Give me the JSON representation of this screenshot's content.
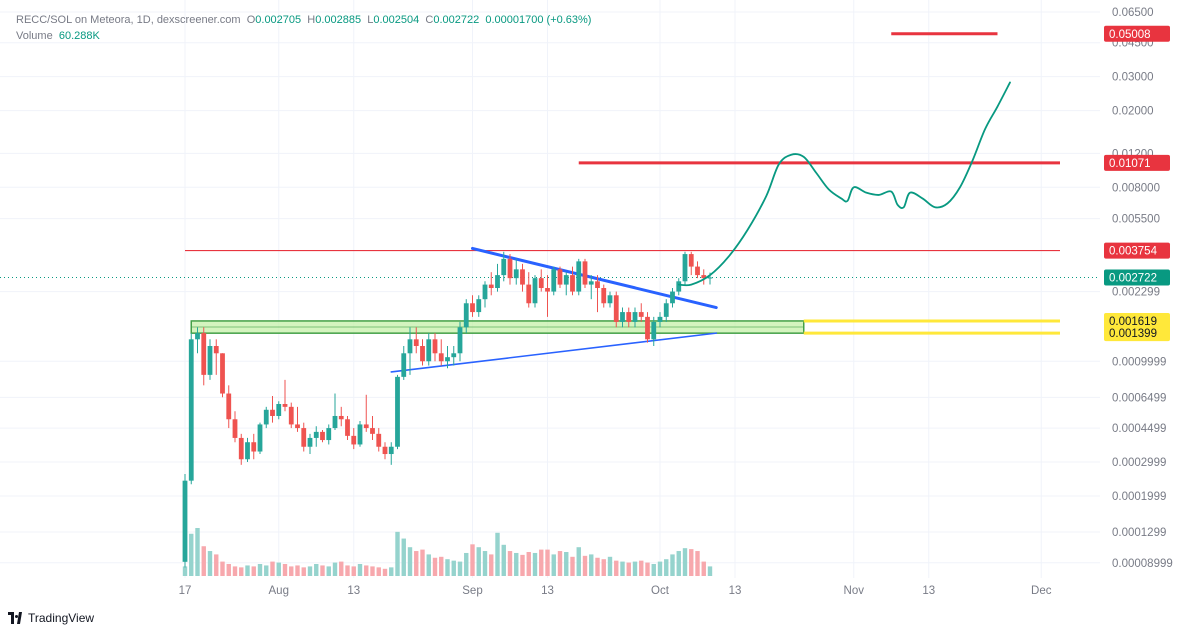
{
  "header": {
    "symbol_line": "RECC/SOL on Meteora, 1D, dexscreener.com",
    "o_label": "O",
    "o_value": "0.002705",
    "h_label": "H",
    "h_value": "0.002885",
    "l_label": "L",
    "l_value": "0.002504",
    "c_label": "C",
    "c_value": "0.002722",
    "change": "0.00001700 (+0.63%)",
    "volume_label": "Volume",
    "volume_value": "60.288K"
  },
  "branding": {
    "logo_text": "TradingView"
  },
  "colors": {
    "up": "#26a69a",
    "down": "#ef5350",
    "vol_up": "#95d3cd",
    "vol_down": "#f7a8ad",
    "resistance": "#e8343f",
    "support": "#ffe83a",
    "zone_fill": "#c6f0a9",
    "zone_border": "#43a047",
    "trendline": "#2962ff",
    "projection": "#089981",
    "last_price": "#089981"
  },
  "chart_data": {
    "type": "candlestick",
    "price_scale": "log",
    "x_tick_labels": [
      "17",
      "Aug",
      "13",
      "Sep",
      "13",
      "Oct",
      "13",
      "Nov",
      "13",
      "Dec"
    ],
    "y_tick_labels": [
      "0.06500",
      "0.04500",
      "0.03000",
      "0.02000",
      "0.01200",
      "0.008000",
      "0.005500",
      "0.002299",
      "0.0009999",
      "0.0006499",
      "0.0004499",
      "0.0002999",
      "0.0001999",
      "0.0001299",
      "0.00008999"
    ],
    "y_ticks": [
      0.065,
      0.045,
      0.03,
      0.02,
      0.012,
      0.008,
      0.0055,
      0.002299,
      0.0009999,
      0.0006499,
      0.0004499,
      0.0002999,
      0.0001999,
      0.0001299,
      8.999e-05
    ],
    "ylim": [
      7.5e-05,
      0.075
    ],
    "start_date": "2024-07-17",
    "x_ticks": [
      {
        "label": "17",
        "date": "2024-07-17"
      },
      {
        "label": "Aug",
        "date": "2024-08-01"
      },
      {
        "label": "13",
        "date": "2024-08-13"
      },
      {
        "label": "Sep",
        "date": "2024-09-01"
      },
      {
        "label": "13",
        "date": "2024-09-13"
      },
      {
        "label": "Oct",
        "date": "2024-10-01"
      },
      {
        "label": "13",
        "date": "2024-10-13"
      },
      {
        "label": "Nov",
        "date": "2024-11-01"
      },
      {
        "label": "13",
        "date": "2024-11-13"
      },
      {
        "label": "Dec",
        "date": "2024-12-01"
      }
    ],
    "x_max_date": "2024-12-04",
    "candles": [
      [
        9.1e-05,
        0.00026,
        8.5e-05,
        0.00024
      ],
      [
        0.00024,
        0.0014,
        0.00023,
        0.0013
      ],
      [
        0.0013,
        0.0015,
        0.0011,
        0.0014
      ],
      [
        0.0014,
        0.0015,
        0.00075,
        0.00085
      ],
      [
        0.00085,
        0.0013,
        0.0008,
        0.0012
      ],
      [
        0.0012,
        0.0013,
        0.00085,
        0.0011
      ],
      [
        0.0011,
        0.0011,
        0.00065,
        0.00068
      ],
      [
        0.00068,
        0.00075,
        0.00045,
        0.0005
      ],
      [
        0.0005,
        0.00055,
        0.00038,
        0.0004
      ],
      [
        0.0004,
        0.00042,
        0.00029,
        0.00031
      ],
      [
        0.00031,
        0.0004,
        0.0003,
        0.00038
      ],
      [
        0.00038,
        0.00042,
        0.00031,
        0.00034
      ],
      [
        0.00034,
        0.00048,
        0.00033,
        0.00047
      ],
      [
        0.00047,
        0.00058,
        0.00045,
        0.00056
      ],
      [
        0.00056,
        0.00066,
        0.00048,
        0.00052
      ],
      [
        0.00052,
        0.00062,
        0.0005,
        0.0006
      ],
      [
        0.0006,
        0.0008,
        0.00055,
        0.00058
      ],
      [
        0.00058,
        0.00061,
        0.00045,
        0.00047
      ],
      [
        0.00047,
        0.00058,
        0.00043,
        0.00045
      ],
      [
        0.00045,
        0.00048,
        0.00034,
        0.00036
      ],
      [
        0.00036,
        0.00042,
        0.00033,
        0.0004
      ],
      [
        0.0004,
        0.00046,
        0.00036,
        0.00043
      ],
      [
        0.00043,
        0.00044,
        0.00038,
        0.00039
      ],
      [
        0.00039,
        0.00047,
        0.00037,
        0.00045
      ],
      [
        0.00045,
        0.00068,
        0.00044,
        0.00052
      ],
      [
        0.00052,
        0.00058,
        0.00046,
        0.0005
      ],
      [
        0.0005,
        0.00052,
        0.00039,
        0.00041
      ],
      [
        0.00041,
        0.00045,
        0.00035,
        0.00037
      ],
      [
        0.00037,
        0.00049,
        0.00036,
        0.00047
      ],
      [
        0.00047,
        0.00067,
        0.00043,
        0.00045
      ],
      [
        0.00045,
        0.00052,
        0.00039,
        0.00042
      ],
      [
        0.00042,
        0.00045,
        0.00034,
        0.00036
      ],
      [
        0.00036,
        0.00038,
        0.00031,
        0.00033
      ],
      [
        0.00033,
        0.00038,
        0.00029,
        0.00036
      ],
      [
        0.00036,
        0.00085,
        0.00035,
        0.00083
      ],
      [
        0.00083,
        0.0012,
        0.0008,
        0.0011
      ],
      [
        0.0011,
        0.0015,
        0.00085,
        0.0013
      ],
      [
        0.0013,
        0.0015,
        0.0011,
        0.0012
      ],
      [
        0.0012,
        0.0013,
        0.00095,
        0.001
      ],
      [
        0.001,
        0.0014,
        0.00095,
        0.0013
      ],
      [
        0.0013,
        0.0014,
        0.001,
        0.0011
      ],
      [
        0.0011,
        0.0013,
        0.00095,
        0.001
      ],
      [
        0.001,
        0.0012,
        0.00092,
        0.00105
      ],
      [
        0.00105,
        0.0012,
        0.00095,
        0.0011
      ],
      [
        0.0011,
        0.0016,
        0.001,
        0.0015
      ],
      [
        0.0015,
        0.0021,
        0.0014,
        0.002
      ],
      [
        0.002,
        0.0022,
        0.0017,
        0.0018
      ],
      [
        0.0018,
        0.0022,
        0.0017,
        0.0021
      ],
      [
        0.0021,
        0.0026,
        0.0019,
        0.0025
      ],
      [
        0.0025,
        0.0029,
        0.0022,
        0.0024
      ],
      [
        0.0024,
        0.0032,
        0.0023,
        0.0028
      ],
      [
        0.0028,
        0.0037,
        0.0026,
        0.0034
      ],
      [
        0.0034,
        0.0036,
        0.0025,
        0.0027
      ],
      [
        0.0027,
        0.0034,
        0.0025,
        0.003
      ],
      [
        0.003,
        0.0032,
        0.0023,
        0.0025
      ],
      [
        0.0025,
        0.0029,
        0.0019,
        0.002
      ],
      [
        0.002,
        0.0028,
        0.0019,
        0.0027
      ],
      [
        0.0027,
        0.003,
        0.0023,
        0.0024
      ],
      [
        0.0024,
        0.0028,
        0.0017,
        0.0023
      ],
      [
        0.0023,
        0.0031,
        0.0022,
        0.003
      ],
      [
        0.003,
        0.0031,
        0.0024,
        0.0025
      ],
      [
        0.0025,
        0.0029,
        0.0022,
        0.0028
      ],
      [
        0.0028,
        0.0031,
        0.0022,
        0.0023
      ],
      [
        0.0023,
        0.0034,
        0.0022,
        0.0033
      ],
      [
        0.0033,
        0.0034,
        0.0024,
        0.0025
      ],
      [
        0.0025,
        0.0028,
        0.0021,
        0.0026
      ],
      [
        0.0026,
        0.0028,
        0.0018,
        0.0024
      ],
      [
        0.0024,
        0.0025,
        0.0019,
        0.002
      ],
      [
        0.002,
        0.0023,
        0.0019,
        0.0022
      ],
      [
        0.0022,
        0.0023,
        0.0015,
        0.0016
      ],
      [
        0.0016,
        0.0019,
        0.0015,
        0.0018
      ],
      [
        0.0018,
        0.0019,
        0.0015,
        0.0016
      ],
      [
        0.0016,
        0.0019,
        0.0015,
        0.0018
      ],
      [
        0.0018,
        0.002,
        0.0016,
        0.0017
      ],
      [
        0.0017,
        0.0018,
        0.00125,
        0.0013
      ],
      [
        0.0013,
        0.0017,
        0.0012,
        0.0016
      ],
      [
        0.0016,
        0.0018,
        0.0015,
        0.0017
      ],
      [
        0.0017,
        0.0021,
        0.0016,
        0.002
      ],
      [
        0.002,
        0.0024,
        0.0019,
        0.0023
      ],
      [
        0.0023,
        0.0027,
        0.0022,
        0.0026
      ],
      [
        0.0026,
        0.0037,
        0.0025,
        0.0036
      ],
      [
        0.0036,
        0.0037,
        0.0028,
        0.0031
      ],
      [
        0.0031,
        0.0033,
        0.0027,
        0.0028
      ],
      [
        0.0028,
        0.003,
        0.0025,
        0.0027
      ],
      [
        0.002705,
        0.002885,
        0.002504,
        0.002722
      ]
    ],
    "volumes": [
      0.2,
      0.88,
      1,
      0.62,
      0.52,
      0.45,
      0.3,
      0.25,
      0.2,
      0.18,
      0.22,
      0.2,
      0.25,
      0.22,
      0.3,
      0.28,
      0.25,
      0.2,
      0.22,
      0.18,
      0.2,
      0.25,
      0.22,
      0.2,
      0.28,
      0.3,
      0.22,
      0.2,
      0.25,
      0.22,
      0.2,
      0.18,
      0.15,
      0.18,
      0.92,
      0.78,
      0.6,
      0.52,
      0.55,
      0.45,
      0.38,
      0.4,
      0.35,
      0.32,
      0.3,
      0.48,
      0.66,
      0.6,
      0.52,
      0.45,
      0.9,
      0.65,
      0.52,
      0.48,
      0.44,
      0.5,
      0.48,
      0.55,
      0.55,
      0.45,
      0.52,
      0.5,
      0.4,
      0.6,
      0.42,
      0.45,
      0.38,
      0.35,
      0.4,
      0.32,
      0.3,
      0.28,
      0.3,
      0.32,
      0.28,
      0.25,
      0.3,
      0.35,
      0.45,
      0.52,
      0.58,
      0.56,
      0.52,
      0.3,
      0.2
    ],
    "price_labels": [
      {
        "value": 0.05008,
        "text": "0.05008",
        "kind": "resistance"
      },
      {
        "value": 0.01071,
        "text": "0.01071",
        "kind": "resistance"
      },
      {
        "value": 0.003754,
        "text": "0.003754",
        "kind": "resistance"
      },
      {
        "value": 0.002722,
        "text": "0.002722",
        "kind": "last"
      },
      {
        "value": 0.001619,
        "text": "0.001619",
        "kind": "support"
      },
      {
        "value": 0.001399,
        "text": "0.001399",
        "kind": "support"
      }
    ],
    "resistance_lines": [
      {
        "value": 0.05008,
        "from": "2024-11-07",
        "to": "2024-11-24"
      },
      {
        "value": 0.01071,
        "from": "2024-09-18",
        "to": "2024-12-04"
      },
      {
        "value": 0.003754,
        "from": "2024-07-17",
        "to": "2024-12-04"
      }
    ],
    "support_lines": [
      {
        "value": 0.001619,
        "from": "2024-10-24",
        "to": "2024-12-04"
      },
      {
        "value": 0.001399,
        "from": "2024-10-24",
        "to": "2024-12-04"
      }
    ],
    "support_zone": {
      "from": "2024-07-18",
      "to": "2024-10-24",
      "low": 0.001399,
      "high": 0.001619
    },
    "trendlines": [
      {
        "points": [
          {
            "date": "2024-09-01",
            "value": 0.00385
          },
          {
            "date": "2024-10-10",
            "value": 0.0019
          }
        ],
        "weight": "thick"
      },
      {
        "points": [
          {
            "date": "2024-08-19",
            "value": 0.00088
          },
          {
            "date": "2024-10-10",
            "value": 0.0014
          }
        ],
        "weight": "thin"
      }
    ],
    "projection": [
      {
        "date": "2024-10-04",
        "value": 0.0025
      },
      {
        "date": "2024-10-06",
        "value": 0.0025
      },
      {
        "date": "2024-10-09",
        "value": 0.0028
      },
      {
        "date": "2024-10-12",
        "value": 0.0035
      },
      {
        "date": "2024-10-15",
        "value": 0.0048
      },
      {
        "date": "2024-10-18",
        "value": 0.0072
      },
      {
        "date": "2024-10-20",
        "value": 0.0105
      },
      {
        "date": "2024-10-22",
        "value": 0.0118
      },
      {
        "date": "2024-10-24",
        "value": 0.0115
      },
      {
        "date": "2024-10-26",
        "value": 0.0095
      },
      {
        "date": "2024-10-28",
        "value": 0.0078
      },
      {
        "date": "2024-10-30",
        "value": 0.007
      },
      {
        "date": "2024-10-31",
        "value": 0.0068
      },
      {
        "date": "2024-11-01",
        "value": 0.008
      },
      {
        "date": "2024-11-03",
        "value": 0.0075
      },
      {
        "date": "2024-11-05",
        "value": 0.0073
      },
      {
        "date": "2024-11-07",
        "value": 0.0076
      },
      {
        "date": "2024-11-08",
        "value": 0.0065
      },
      {
        "date": "2024-11-09",
        "value": 0.0063
      },
      {
        "date": "2024-11-10",
        "value": 0.0075
      },
      {
        "date": "2024-11-12",
        "value": 0.007
      },
      {
        "date": "2024-11-14",
        "value": 0.0063
      },
      {
        "date": "2024-11-16",
        "value": 0.0066
      },
      {
        "date": "2024-11-18",
        "value": 0.008
      },
      {
        "date": "2024-11-20",
        "value": 0.011
      },
      {
        "date": "2024-11-22",
        "value": 0.016
      },
      {
        "date": "2024-11-24",
        "value": 0.021
      },
      {
        "date": "2024-11-26",
        "value": 0.028
      }
    ]
  }
}
